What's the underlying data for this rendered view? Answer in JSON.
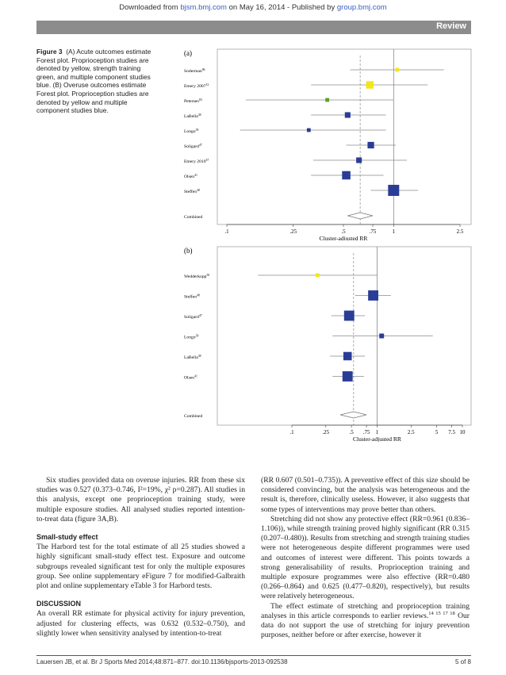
{
  "header": {
    "download_prefix": "Downloaded from ",
    "download_site": "bjsm.bmj.com",
    "download_mid": " on May 16, 2014 - Published by ",
    "download_pub": "group.bmj.com",
    "section_label": "Review"
  },
  "caption": {
    "label": "Figure 3",
    "text": "(A) Acute outcomes estimate Forest plot. Proprioception studies are denoted by yellow, strength training green, and multiple component studies blue. (B) Overuse outcomes estimate Forest plot. Proprioception studies are denoted by yellow and multiple component studies blue."
  },
  "colors": {
    "proprioception": "#f2e61a",
    "strength": "#5aa02c",
    "multiple": "#2a3d96",
    "axis": "#555555"
  },
  "chart_data": [
    {
      "type": "forest",
      "panel_label": "(a)",
      "xlabel": "Cluster-adjusted RR",
      "x_scale": "log",
      "xticks": [
        ".1",
        ".25",
        ".5",
        ".75",
        "1",
        "2.5"
      ],
      "xtick_values": [
        0.1,
        0.25,
        0.5,
        0.75,
        1,
        2.5
      ],
      "xlim": [
        0.1,
        2.5
      ],
      "studies": [
        {
          "label": "Soderman",
          "ref": "86",
          "rr": 1.05,
          "lo": 0.55,
          "hi": 2.0,
          "group": "proprioception",
          "weight": 2
        },
        {
          "label": "Emery 2007",
          "ref": "12",
          "rr": 0.72,
          "lo": 0.32,
          "hi": 1.6,
          "group": "proprioception",
          "weight": 6
        },
        {
          "label": "Petersen",
          "ref": "83",
          "rr": 0.4,
          "lo": 0.13,
          "hi": 1.0,
          "group": "strength",
          "weight": 2
        },
        {
          "label": "LaBella",
          "ref": "38",
          "rr": 0.53,
          "lo": 0.32,
          "hi": 0.9,
          "group": "multiple",
          "weight": 4
        },
        {
          "label": "Longo",
          "ref": "39",
          "rr": 0.31,
          "lo": 0.12,
          "hi": 0.9,
          "group": "multiple",
          "weight": 2
        },
        {
          "label": "Soligard",
          "ref": "47",
          "rr": 0.73,
          "lo": 0.52,
          "hi": 1.03,
          "group": "multiple",
          "weight": 5
        },
        {
          "label": "Emery 2010",
          "ref": "37",
          "rr": 0.62,
          "lo": 0.33,
          "hi": 1.2,
          "group": "multiple",
          "weight": 4
        },
        {
          "label": "Olsen",
          "ref": "41",
          "rr": 0.52,
          "lo": 0.32,
          "hi": 0.87,
          "group": "multiple",
          "weight": 7
        },
        {
          "label": "Steffen",
          "ref": "48",
          "rr": 1.0,
          "lo": 0.73,
          "hi": 1.4,
          "group": "multiple",
          "weight": 10
        }
      ],
      "combined": {
        "label": "Combined",
        "rr": 0.63,
        "lo": 0.53,
        "hi": 0.75
      }
    },
    {
      "type": "forest",
      "panel_label": "(b)",
      "xlabel": "Cluster-adjusted RR",
      "x_scale": "log",
      "xticks": [
        ".1",
        ".25",
        ".5",
        ".75",
        "1",
        "2.5",
        "5",
        "7.5",
        "10"
      ],
      "xtick_values": [
        0.1,
        0.25,
        0.5,
        0.75,
        1,
        2.5,
        5,
        7.5,
        10
      ],
      "xlim": [
        0.1,
        10
      ],
      "studies": [
        {
          "label": "Wedderkopp",
          "ref": "50",
          "rr": 0.2,
          "lo": 0.04,
          "hi": 1.0,
          "group": "proprioception",
          "weight": 2
        },
        {
          "label": "Steffen",
          "ref": "48",
          "rr": 0.9,
          "lo": 0.55,
          "hi": 1.45,
          "group": "multiple",
          "weight": 9
        },
        {
          "label": "Soligard",
          "ref": "47",
          "rr": 0.47,
          "lo": 0.29,
          "hi": 0.72,
          "group": "multiple",
          "weight": 9
        },
        {
          "label": "Longo",
          "ref": "39",
          "rr": 1.13,
          "lo": 0.3,
          "hi": 4.5,
          "group": "multiple",
          "weight": 3
        },
        {
          "label": "LaBella",
          "ref": "38",
          "rr": 0.45,
          "lo": 0.28,
          "hi": 0.72,
          "group": "multiple",
          "weight": 7
        },
        {
          "label": "Olsen",
          "ref": "41",
          "rr": 0.45,
          "lo": 0.3,
          "hi": 0.7,
          "group": "multiple",
          "weight": 9
        }
      ],
      "combined": {
        "label": "Combined",
        "rr": 0.53,
        "lo": 0.37,
        "hi": 0.75
      }
    }
  ],
  "body": {
    "left_para1": "Six studies provided data on overuse injuries. RR from these six studies was 0.527 (0.373–0.746, I²=19%, χ² p=0.287). All studies in this analysis, except one proprioception training study, were multiple exposure studies. All analysed studies reported intention-to-treat data (figure 3A,B).",
    "heading_small": "Small-study effect",
    "left_para2": "The Harbord test for the total estimate of all 25 studies showed a highly significant small-study effect test. Exposure and outcome subgroups revealed significant test for only the multiple exposures group. See online supplementary eFigure 7 for modified-Galbraith plot and online supplementary eTable 3 for Harbord tests.",
    "heading_discussion": "DISCUSSION",
    "left_para3": "An overall RR estimate for physical activity for injury prevention, adjusted for clustering effects, was 0.632 (0.532–0.750), and slightly lower when sensitivity analysed by intention-to-treat",
    "right_para1": "(RR 0.607 (0.501–0.735)). A preventive effect of this size should be considered convincing, but the analysis was heterogeneous and the result is, therefore, clinically useless. However, it also suggests that some types of interventions may prove better than others.",
    "right_para2": "Stretching did not show any protective effect (RR=0.961 (0.836–1.106)), while strength training proved highly significant (RR 0.315 (0.207–0.480)). Results from stretching and strength training studies were not heterogeneous despite different programmes were used and outcomes of interest were different. This points towards a strong generalisability of results. Proprioception training and multiple exposure programmes were also effective (RR=0.480 (0.266–0.864) and 0.625 (0.477–0.820), respectively), but results were relatively heterogeneous.",
    "right_para3": "The effect estimate of stretching and proprioception training analyses in this article corresponds to earlier reviews.",
    "right_para3_refs": "14 15 17 18",
    "right_para4": "Our data do not support the use of stretching for injury prevention purposes, neither before or after exercise, however it"
  },
  "footer": {
    "citation": "Lauersen JB, et al. Br J Sports Med 2014;48:871–877. doi:10.1136/bjsports-2013-092538",
    "page": "5 of 8"
  }
}
